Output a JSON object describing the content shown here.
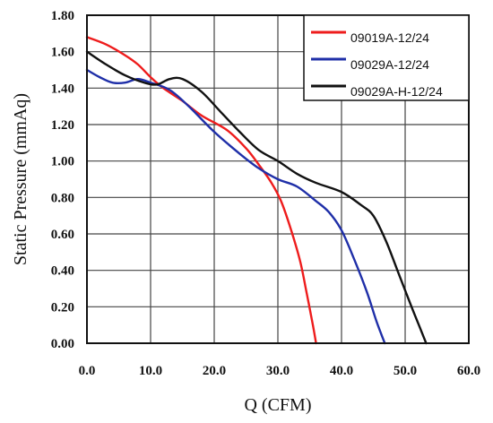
{
  "chart_data": {
    "type": "line",
    "title": "",
    "xlabel": "Q (CFM)",
    "ylabel": "Static Pressure (mmAq)",
    "xlim": [
      0,
      60
    ],
    "ylim": [
      0,
      1.8
    ],
    "x_ticks": [
      "0.0",
      "10.0",
      "20.0",
      "30.0",
      "40.0",
      "50.0",
      "60.0"
    ],
    "y_ticks": [
      "0.00",
      "0.20",
      "0.40",
      "0.60",
      "0.80",
      "1.00",
      "1.20",
      "1.40",
      "1.60",
      "1.80"
    ],
    "grid": true,
    "legend_position": "top-right",
    "series": [
      {
        "name": "09019A-12/24",
        "color": "#ee1c1c",
        "points": [
          [
            0,
            1.68
          ],
          [
            3,
            1.64
          ],
          [
            6,
            1.58
          ],
          [
            8,
            1.53
          ],
          [
            10,
            1.46
          ],
          [
            12,
            1.4
          ],
          [
            15,
            1.33
          ],
          [
            18,
            1.25
          ],
          [
            22,
            1.17
          ],
          [
            25,
            1.07
          ],
          [
            27,
            0.98
          ],
          [
            29,
            0.88
          ],
          [
            30.5,
            0.78
          ],
          [
            32,
            0.63
          ],
          [
            33.5,
            0.45
          ],
          [
            34.5,
            0.28
          ],
          [
            35.5,
            0.1
          ],
          [
            36,
            0.0
          ]
        ]
      },
      {
        "name": "09029A-12/24",
        "color": "#1f2fa8",
        "points": [
          [
            0,
            1.5
          ],
          [
            2,
            1.46
          ],
          [
            4,
            1.43
          ],
          [
            6,
            1.43
          ],
          [
            8,
            1.45
          ],
          [
            10,
            1.43
          ],
          [
            13,
            1.39
          ],
          [
            16,
            1.3
          ],
          [
            20,
            1.16
          ],
          [
            24,
            1.04
          ],
          [
            27,
            0.96
          ],
          [
            30,
            0.9
          ],
          [
            33,
            0.86
          ],
          [
            36,
            0.78
          ],
          [
            38,
            0.72
          ],
          [
            40,
            0.62
          ],
          [
            42,
            0.46
          ],
          [
            44,
            0.28
          ],
          [
            45.5,
            0.12
          ],
          [
            46.8,
            0.0
          ]
        ]
      },
      {
        "name": "09029A-H-12/24",
        "color": "#111111",
        "points": [
          [
            0,
            1.6
          ],
          [
            3,
            1.53
          ],
          [
            6,
            1.47
          ],
          [
            9,
            1.43
          ],
          [
            11,
            1.42
          ],
          [
            13,
            1.45
          ],
          [
            15,
            1.45
          ],
          [
            18,
            1.38
          ],
          [
            21,
            1.27
          ],
          [
            24,
            1.16
          ],
          [
            27,
            1.06
          ],
          [
            30,
            1.0
          ],
          [
            33,
            0.93
          ],
          [
            36,
            0.88
          ],
          [
            40,
            0.83
          ],
          [
            43,
            0.76
          ],
          [
            45,
            0.7
          ],
          [
            47,
            0.56
          ],
          [
            49,
            0.38
          ],
          [
            51,
            0.2
          ],
          [
            52.5,
            0.07
          ],
          [
            53.3,
            0.0
          ]
        ]
      }
    ]
  }
}
